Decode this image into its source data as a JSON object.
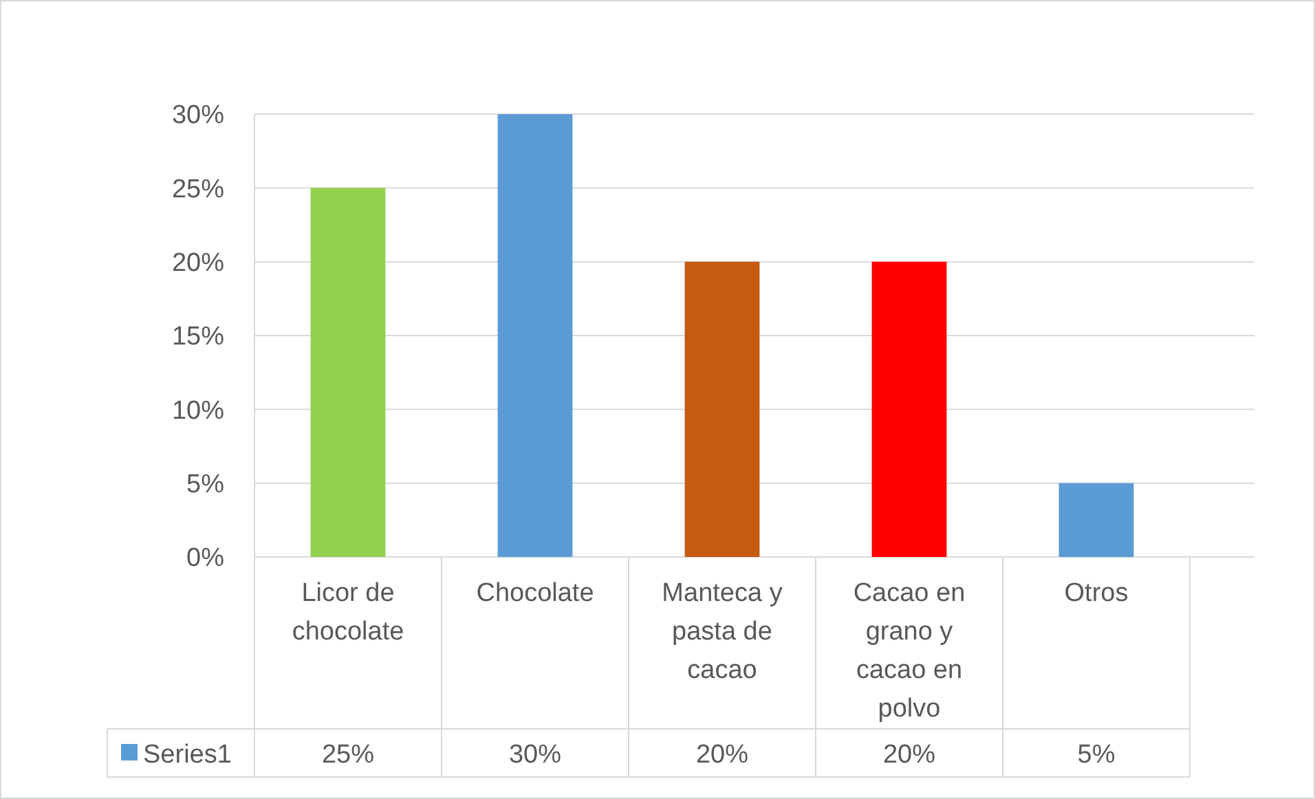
{
  "chart_data": {
    "type": "bar",
    "categories": [
      "Licor de chocolate",
      "Chocolate",
      "Manteca y pasta de cacao",
      "Cacao en grano y cacao en polvo",
      "Otros"
    ],
    "series": [
      {
        "name": "Series1",
        "color": "#5b9bd5",
        "colors": [
          "#92d050",
          "#5b9bd5",
          "#c55a11",
          "#ff0000",
          "#5b9bd5"
        ],
        "values": [
          25,
          30,
          20,
          20,
          5
        ],
        "value_labels": [
          "25%",
          "30%",
          "20%",
          "20%",
          "5%"
        ]
      }
    ],
    "ylim": [
      0,
      30
    ],
    "yticks": [
      {
        "value": 0,
        "label": "0%"
      },
      {
        "value": 5,
        "label": "5%"
      },
      {
        "value": 10,
        "label": "10%"
      },
      {
        "value": 15,
        "label": "15%"
      },
      {
        "value": 20,
        "label": "20%"
      },
      {
        "value": 25,
        "label": "25%"
      },
      {
        "value": 30,
        "label": "30%"
      }
    ],
    "grid": true,
    "legend": "bottom"
  }
}
